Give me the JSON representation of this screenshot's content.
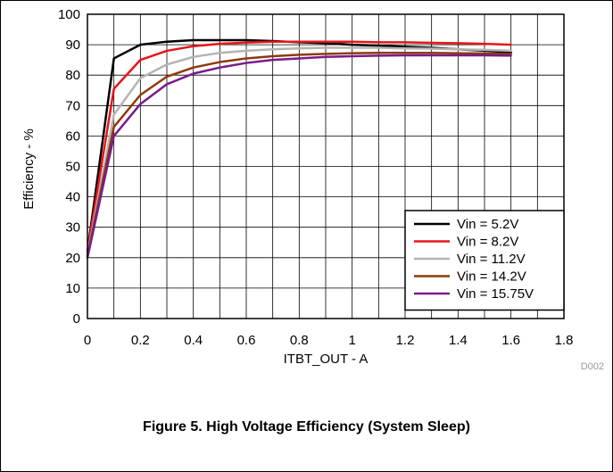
{
  "figure_caption": "Figure 5. High Voltage Efficiency (System Sleep)",
  "figure_code": "D002",
  "chart_data": {
    "type": "line",
    "title": "",
    "xlabel": "ITBT_OUT - A",
    "ylabel": "Efficiency - %",
    "xlim": [
      0,
      1.8
    ],
    "ylim": [
      0,
      100
    ],
    "x_ticks": [
      "0",
      "0.2",
      "0.4",
      "0.6",
      "0.8",
      "1",
      "1.2",
      "1.4",
      "1.6",
      "1.8"
    ],
    "y_ticks": [
      "0",
      "10",
      "20",
      "30",
      "40",
      "50",
      "60",
      "70",
      "80",
      "90",
      "100"
    ],
    "grid": true,
    "legend_position": "bottom-right",
    "x": [
      0,
      0.1,
      0.2,
      0.3,
      0.4,
      0.5,
      0.6,
      0.7,
      0.8,
      0.9,
      1.0,
      1.1,
      1.2,
      1.3,
      1.4,
      1.5,
      1.6
    ],
    "series": [
      {
        "name": "Vin = 5.2V",
        "color": "#000000",
        "values": [
          22,
          85.5,
          90,
          91,
          91.5,
          91.5,
          91.5,
          91.2,
          90.8,
          90.5,
          90,
          89.7,
          89.3,
          89,
          88.5,
          88,
          87.5
        ]
      },
      {
        "name": "Vin = 8.2V",
        "color": "#e8141b",
        "values": [
          22,
          75.5,
          85,
          88,
          89.5,
          90.3,
          90.7,
          91,
          91,
          91,
          91,
          90.8,
          90.8,
          90.6,
          90.5,
          90.3,
          90
        ]
      },
      {
        "name": "Vin = 11.2V",
        "color": "#b4b4b4",
        "values": [
          21,
          67,
          79,
          83.5,
          86,
          87.3,
          88,
          88.5,
          88.8,
          89,
          89,
          89,
          88.8,
          88.7,
          88.5,
          88.3,
          88
        ]
      },
      {
        "name": "Vin = 14.2V",
        "color": "#8c3a0c",
        "values": [
          20.5,
          63,
          73.5,
          79.5,
          82.5,
          84.3,
          85.5,
          86.2,
          86.7,
          87,
          87.2,
          87.3,
          87.3,
          87.3,
          87.2,
          87.1,
          87
        ]
      },
      {
        "name": "Vin = 15.75V",
        "color": "#7a1a8c",
        "values": [
          20,
          60,
          70.5,
          77,
          80.5,
          82.5,
          84,
          85,
          85.5,
          86,
          86.2,
          86.4,
          86.5,
          86.5,
          86.5,
          86.5,
          86.4
        ]
      }
    ]
  }
}
